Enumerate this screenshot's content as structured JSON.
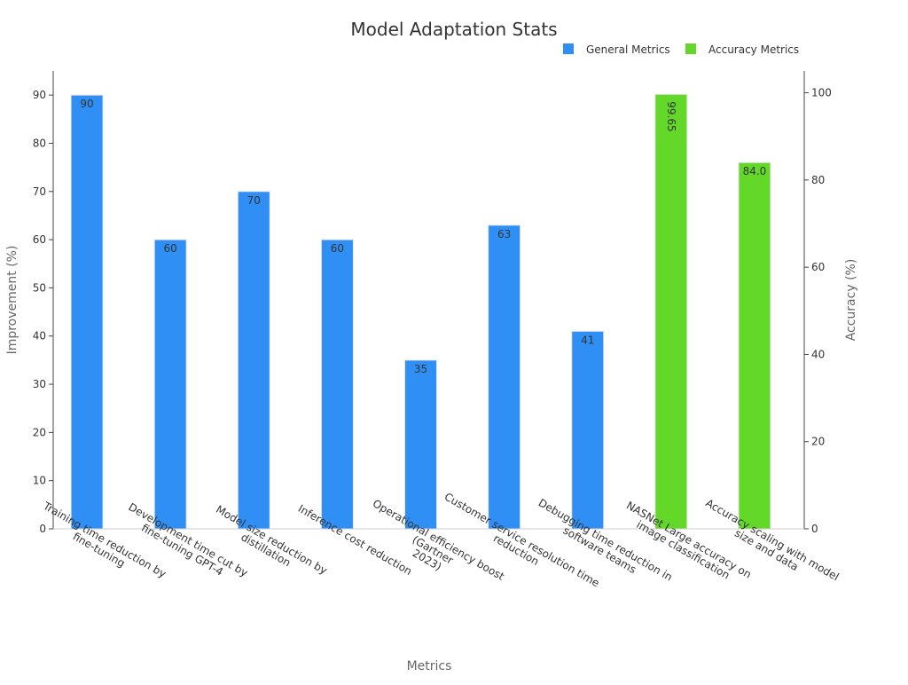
{
  "chart_data": {
    "type": "bar",
    "title": "Model Adaptation Stats",
    "xlabel": "Metrics",
    "ylabel_left": "Improvement (%)",
    "ylabel_right": "Accuracy (%)",
    "categories": [
      [
        "Training time reduction by",
        "fine-tuning"
      ],
      [
        "Development time cut by",
        "fine-tuning GPT-4"
      ],
      [
        "Model size reduction by",
        "distillation"
      ],
      [
        "Inference cost reduction"
      ],
      [
        "Operational efficiency boost",
        "(Gartner",
        "2023)"
      ],
      [
        "Customer service resolution time",
        "reduction"
      ],
      [
        "Debugging time reduction in",
        "software teams"
      ],
      [
        "NASNet Large accuracy on",
        "image classification"
      ],
      [
        "Accuracy scaling with model",
        "size and data"
      ]
    ],
    "series": [
      {
        "name": "General Metrics",
        "color": "#2f8ff5",
        "axis": "left",
        "values": [
          90,
          60,
          70,
          60,
          35,
          63,
          41,
          null,
          null
        ],
        "labels": [
          "90",
          "60",
          "70",
          "60",
          "35",
          "63",
          "41",
          "",
          ""
        ]
      },
      {
        "name": "Accuracy Metrics",
        "color": "#63d829",
        "axis": "right",
        "values": [
          null,
          null,
          null,
          null,
          null,
          null,
          null,
          99.65,
          84.0
        ],
        "labels": [
          "",
          "",
          "",
          "",
          "",
          "",
          "",
          "99.65",
          "84.0"
        ]
      }
    ],
    "ylim_left": [
      0,
      95
    ],
    "yticks_left": [
      0,
      10,
      20,
      30,
      40,
      50,
      60,
      70,
      80,
      90
    ],
    "ylim_right": [
      0,
      105
    ],
    "yticks_right": [
      0,
      20,
      40,
      60,
      80,
      100
    ],
    "grid": false,
    "legend": "top-right"
  }
}
